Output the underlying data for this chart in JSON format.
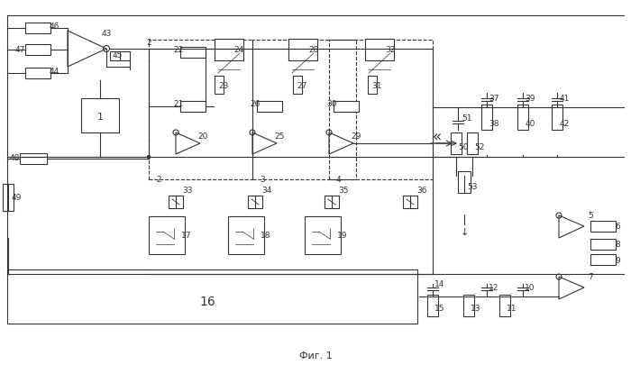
{
  "title": "Фиг. 1",
  "bg_color": "#ffffff",
  "line_color": "#333333",
  "fig_width": 7.0,
  "fig_height": 4.06,
  "dpi": 100
}
